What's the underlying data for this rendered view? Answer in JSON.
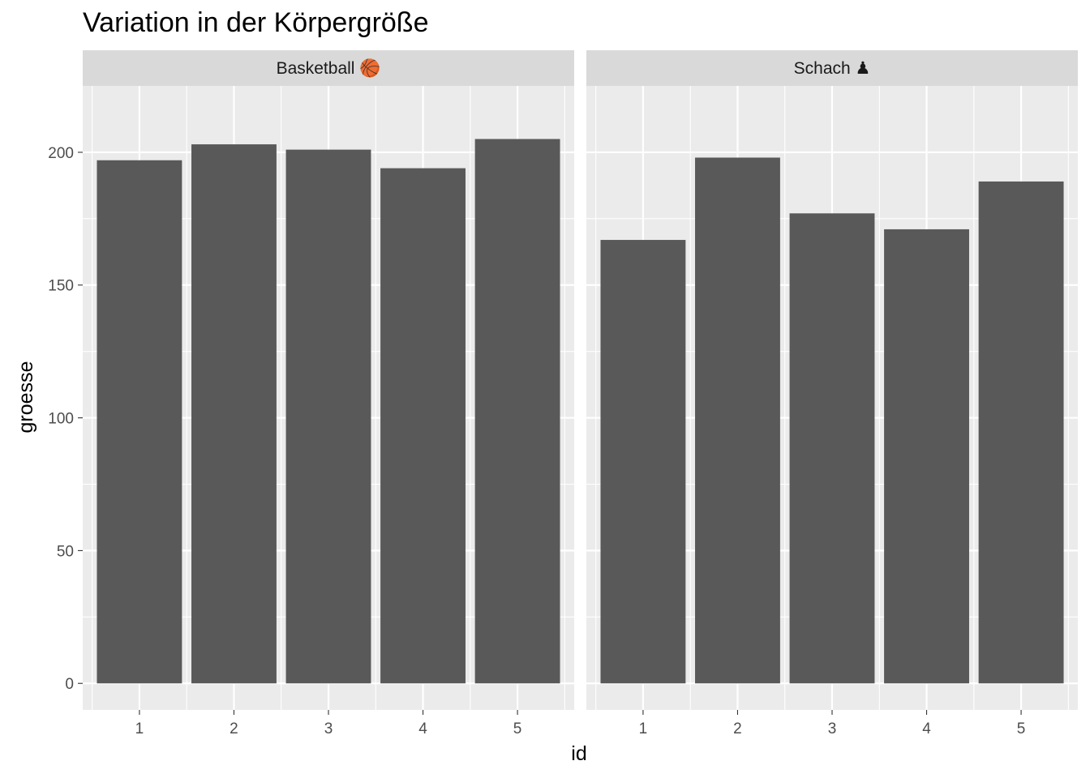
{
  "chart_data": {
    "type": "bar",
    "title": "Variation in der Körpergröße",
    "xlabel": "id",
    "ylabel": "groesse",
    "ylim": [
      -10,
      225
    ],
    "yticks": [
      0,
      50,
      100,
      150,
      200
    ],
    "grid": true,
    "panels": [
      {
        "label": "Basketball 🏀",
        "categories": [
          "1",
          "2",
          "3",
          "4",
          "5"
        ],
        "values": [
          197,
          203,
          201,
          194,
          205
        ]
      },
      {
        "label": "Schach ♟",
        "categories": [
          "1",
          "2",
          "3",
          "4",
          "5"
        ],
        "values": [
          167,
          198,
          177,
          171,
          189
        ]
      }
    ],
    "colors": {
      "bar": "#595959",
      "panel_background": "#ebebeb",
      "strip_background": "#d9d9d9",
      "grid": "#ffffff"
    }
  }
}
